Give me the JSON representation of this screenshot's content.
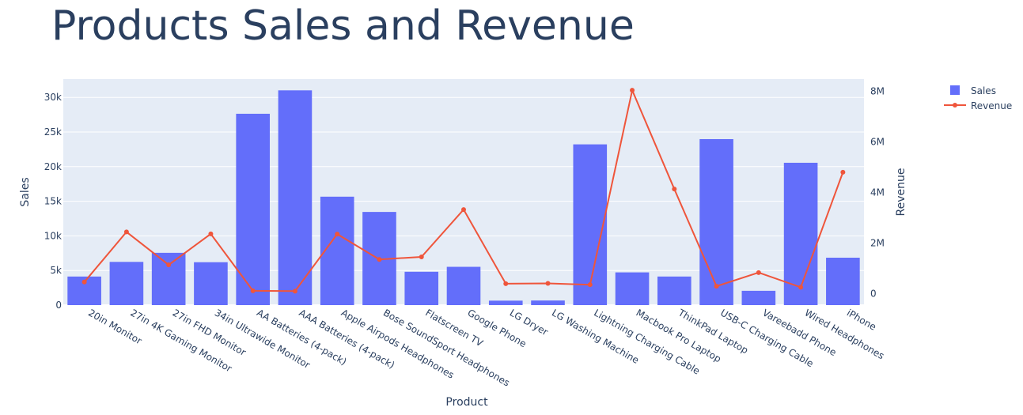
{
  "chart_data": {
    "type": "bar",
    "title": "Products Sales and Revenue",
    "xlabel": "Product",
    "ylabel": "Sales",
    "y2label": "Revenue",
    "categories": [
      "20in Monitor",
      "27in 4K Gaming Monitor",
      "27in FHD Monitor",
      "34in Ultrawide Monitor",
      "AA Batteries (4-pack)",
      "AAA Batteries (4-pack)",
      "Apple Airpods Headphones",
      "Bose SoundSport Headphones",
      "Flatscreen TV",
      "Google Phone",
      "LG Dryer",
      "LG Washing Machine",
      "Lightning Charging Cable",
      "Macbook Pro Laptop",
      "ThinkPad Laptop",
      "USB-C Charging Cable",
      "Vareebadd Phone",
      "Wired Headphones",
      "iPhone"
    ],
    "series": [
      {
        "name": "Sales",
        "type": "bar",
        "axis": "y",
        "color": "#636efa",
        "values": [
          4129,
          6244,
          7550,
          6199,
          27635,
          31017,
          15661,
          13457,
          4819,
          5532,
          646,
          666,
          23217,
          4728,
          4130,
          23975,
          2068,
          20557,
          6849
        ]
      },
      {
        "name": "Revenue",
        "type": "line",
        "axis": "y2",
        "color": "#ef553b",
        "values": [
          454149,
          2435098,
          1132425,
          2355558,
          106118,
          92740,
          2349150,
          1345565,
          1445671,
          3319200,
          387600,
          399600,
          347095,
          8037600,
          4129959,
          286501,
          827200,
          246478,
          4794300
        ]
      }
    ],
    "ylim": [
      0,
      32649
    ],
    "y_ticks": [
      0,
      5000,
      10000,
      15000,
      20000,
      25000,
      30000
    ],
    "y_tick_labels": [
      "0",
      "5k",
      "10k",
      "15k",
      "20k",
      "25k",
      "30k"
    ],
    "y2lim": [
      -460000,
      8480000
    ],
    "y2_ticks": [
      0,
      2000000,
      4000000,
      6000000,
      8000000
    ],
    "y2_tick_labels": [
      "0",
      "2M",
      "4M",
      "6M",
      "8M"
    ],
    "grid": true,
    "legend_position": "top-right",
    "plot_background": "#e5ecf6"
  }
}
